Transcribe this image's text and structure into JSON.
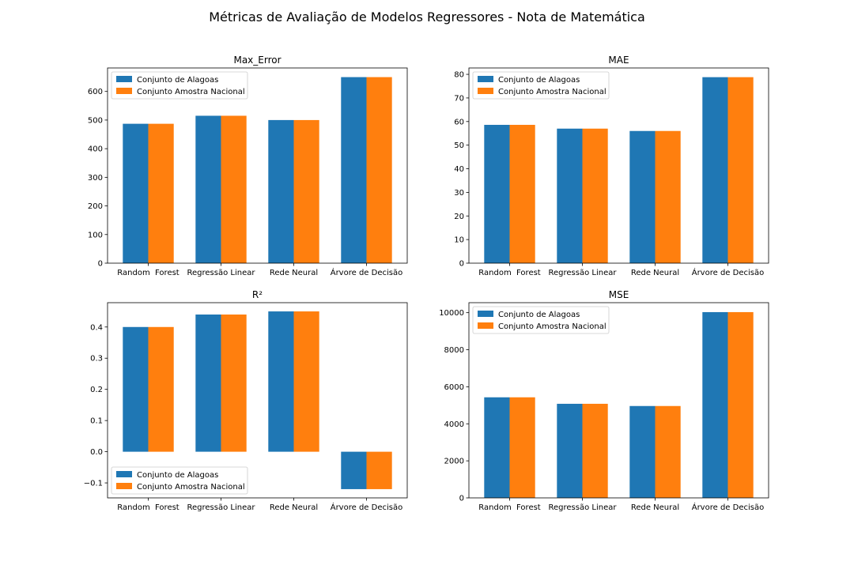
{
  "figure": {
    "suptitle": "Métricas de Avaliação de Modelos Regressores - Nota de Matemática"
  },
  "colors": {
    "series_alagoas": "#1f77b4",
    "series_nacional": "#ff7f0e"
  },
  "chart_data": [
    {
      "type": "bar",
      "title": "Max_Error",
      "categories": [
        "Random  Forest",
        "Regressão Linear",
        "Rede Neural",
        "Árvore de Decisão"
      ],
      "series": [
        {
          "name": "Conjunto de Alagoas",
          "values": [
            487,
            515,
            500,
            650
          ]
        },
        {
          "name": "Conjunto Amostra Nacional",
          "values": [
            487,
            515,
            500,
            650
          ]
        }
      ],
      "ylim": [
        0,
        682
      ],
      "yticks": [
        0,
        100,
        200,
        300,
        400,
        500,
        600
      ],
      "yticklabels": [
        "0",
        "100",
        "200",
        "300",
        "400",
        "500",
        "600"
      ],
      "legend": "top-left"
    },
    {
      "type": "bar",
      "title": "MAE",
      "categories": [
        "Random  Forest",
        "Regressão Linear",
        "Rede Neural",
        "Árvore de Decisão"
      ],
      "series": [
        {
          "name": "Conjunto de Alagoas",
          "values": [
            58.6,
            57.0,
            56.0,
            78.8
          ]
        },
        {
          "name": "Conjunto Amostra Nacional",
          "values": [
            58.6,
            57.0,
            56.0,
            78.8
          ]
        }
      ],
      "ylim": [
        0,
        82.7
      ],
      "yticks": [
        0,
        10,
        20,
        30,
        40,
        50,
        60,
        70,
        80
      ],
      "yticklabels": [
        "0",
        "10",
        "20",
        "30",
        "40",
        "50",
        "60",
        "70",
        "80"
      ],
      "legend": "top-left"
    },
    {
      "type": "bar",
      "title": "R²",
      "categories": [
        "Random  Forest",
        "Regressão Linear",
        "Rede Neural",
        "Árvore de Decisão"
      ],
      "series": [
        {
          "name": "Conjunto de Alagoas",
          "values": [
            0.4,
            0.44,
            0.45,
            -0.12
          ]
        },
        {
          "name": "Conjunto Amostra Nacional",
          "values": [
            0.4,
            0.44,
            0.45,
            -0.12
          ]
        }
      ],
      "ylim": [
        -0.148,
        0.478
      ],
      "yticks": [
        -0.1,
        0.0,
        0.1,
        0.2,
        0.3,
        0.4
      ],
      "yticklabels": [
        "−0.1",
        "0.0",
        "0.1",
        "0.2",
        "0.3",
        "0.4"
      ],
      "legend": "bottom-left"
    },
    {
      "type": "bar",
      "title": "MSE",
      "categories": [
        "Random  Forest",
        "Regressão Linear",
        "Rede Neural",
        "Árvore de Decisão"
      ],
      "series": [
        {
          "name": "Conjunto de Alagoas",
          "values": [
            5430,
            5080,
            4960,
            10030
          ]
        },
        {
          "name": "Conjunto Amostra Nacional",
          "values": [
            5430,
            5080,
            4960,
            10030
          ]
        }
      ],
      "ylim": [
        0,
        10540
      ],
      "yticks": [
        0,
        2000,
        4000,
        6000,
        8000,
        10000
      ],
      "yticklabels": [
        "0",
        "2000",
        "4000",
        "6000",
        "8000",
        "10000"
      ],
      "legend": "top-left"
    }
  ]
}
